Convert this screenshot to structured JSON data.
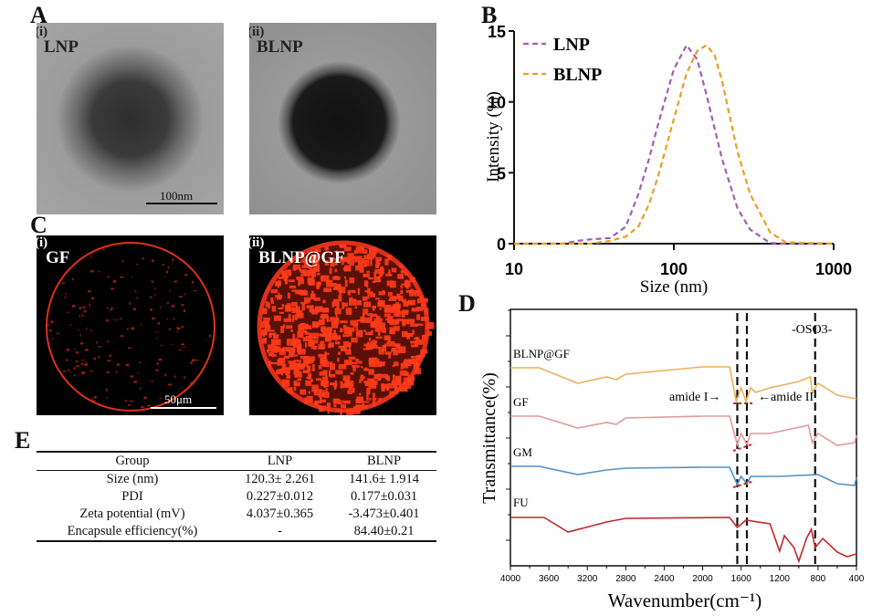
{
  "panels": {
    "A": {
      "label": "A",
      "images": [
        {
          "tag": "(i)",
          "title": "LNP",
          "scale_bar": "100nm"
        },
        {
          "tag": "(ii)",
          "title": "BLNP"
        }
      ]
    },
    "B": {
      "label": "B"
    },
    "C": {
      "label": "C",
      "images": [
        {
          "tag": "(i)",
          "title": "GF",
          "scale_bar": "50μm"
        },
        {
          "tag": "(ii)",
          "title": "BLNP@GF"
        }
      ]
    },
    "D": {
      "label": "D"
    },
    "E": {
      "label": "E",
      "table": {
        "headers": [
          "Group",
          "LNP",
          "BLNP"
        ],
        "rows": [
          [
            "Size (nm)",
            "120.3± 2.261",
            "141.6± 1.914"
          ],
          [
            "PDI",
            "0.227±0.012",
            "0.177±0.031"
          ],
          [
            "Zeta potential (mV)",
            "4.037±0.365",
            "-3.473±0.401"
          ],
          [
            "Encapsule efficiency(%)",
            "-",
            "84.40±0.21"
          ]
        ]
      }
    }
  },
  "chart_data": [
    {
      "type": "line",
      "panel": "B",
      "xlabel": "Size (nm)",
      "ylabel": "Intensity (%)",
      "xscale": "log",
      "xlim": [
        10,
        1000
      ],
      "ylim": [
        0,
        15
      ],
      "xticks": [
        "10",
        "100",
        "1000"
      ],
      "yticks": [
        "0",
        "5",
        "10",
        "15"
      ],
      "grid": false,
      "legend": "top-left",
      "series": [
        {
          "name": "LNP",
          "color": "#a05fb5",
          "style": "dashed",
          "x": [
            10,
            20,
            25,
            30,
            40,
            50,
            60,
            70,
            80,
            100,
            120,
            140,
            160,
            200,
            250,
            300,
            400,
            500,
            1000
          ],
          "y": [
            0,
            0,
            0.2,
            0.3,
            0.4,
            1.2,
            3.5,
            6,
            8.5,
            12.3,
            14,
            13,
            10.5,
            6,
            2.5,
            1,
            0.05,
            0,
            0
          ]
        },
        {
          "name": "BLNP",
          "color": "#e8a020",
          "style": "dashed",
          "x": [
            10,
            30,
            40,
            50,
            60,
            70,
            80,
            100,
            120,
            140,
            160,
            180,
            200,
            250,
            300,
            400,
            500,
            1000
          ],
          "y": [
            0,
            0,
            0.2,
            0.5,
            1.2,
            2.8,
            4.8,
            8.8,
            12,
            13.6,
            14,
            13.3,
            11.5,
            6.5,
            3.5,
            0.8,
            0.1,
            0
          ]
        }
      ]
    },
    {
      "type": "line",
      "panel": "D",
      "xlabel": "Wavenumber(cm⁻¹)",
      "ylabel": "Transmittance(%)",
      "xlim": [
        4000,
        400
      ],
      "xticks": [
        "4000",
        "3600",
        "3200",
        "2800",
        "2400",
        "2000",
        "1600",
        "1200",
        "800",
        "400"
      ],
      "grid": false,
      "annotations": [
        "amide I→",
        "←amide II",
        "-OSO3-"
      ],
      "reference_lines": [
        1640,
        1540,
        830
      ],
      "series": [
        {
          "name": "BLNP@GF",
          "color": "#eab25a",
          "x": [
            4000,
            3700,
            3300,
            3000,
            2900,
            2800,
            2000,
            1720,
            1650,
            1600,
            1550,
            1500,
            1450,
            1300,
            1000,
            880,
            860,
            800,
            600,
            400
          ],
          "y": [
            217,
            217,
            200,
            207,
            204,
            210,
            218,
            218,
            180,
            195,
            180,
            195,
            190,
            195,
            202,
            207,
            190,
            200,
            187,
            183
          ]
        },
        {
          "name": "GF",
          "color": "#e09a9c",
          "x": [
            4000,
            3700,
            3300,
            3000,
            2900,
            2800,
            2000,
            1720,
            1640,
            1600,
            1540,
            1500,
            1300,
            900,
            860,
            800,
            600,
            420,
            400
          ],
          "y": [
            164,
            164,
            151,
            157,
            155,
            162,
            164,
            164,
            133,
            145,
            133,
            145,
            145,
            154,
            135,
            145,
            132,
            135,
            143
          ]
        },
        {
          "name": "GM",
          "color": "#4f93c8",
          "x": [
            4000,
            3700,
            3300,
            3000,
            2800,
            2000,
            1720,
            1640,
            1600,
            1540,
            1500,
            1200,
            800,
            600,
            420,
            400
          ],
          "y": [
            109,
            109,
            100,
            105,
            107,
            108,
            108,
            89,
            98,
            90,
            98,
            98,
            100,
            90,
            88,
            97
          ]
        },
        {
          "name": "FU",
          "color": "#c0282a",
          "x": [
            4000,
            3650,
            3400,
            3000,
            2800,
            1720,
            1640,
            1550,
            1300,
            1200,
            1150,
            1050,
            1000,
            920,
            870,
            830,
            750,
            600,
            500,
            400
          ],
          "y": [
            53,
            53,
            37,
            48,
            52,
            53,
            42,
            50,
            46,
            16,
            33,
            20,
            5,
            30,
            40,
            20,
            30,
            15,
            10,
            13
          ]
        }
      ]
    }
  ]
}
